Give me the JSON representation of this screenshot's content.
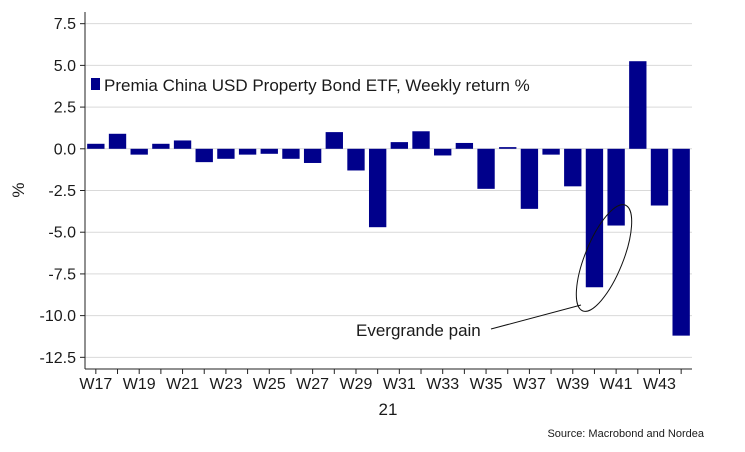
{
  "chart_data": {
    "type": "bar",
    "title": "",
    "ylabel": "%",
    "xlabel": "21",
    "ylim": [
      -13.2,
      8.2
    ],
    "yticks": [
      7.5,
      5.0,
      2.5,
      0.0,
      -2.5,
      -5.0,
      -7.5,
      -10.0,
      -12.5
    ],
    "ytick_labels": [
      "7.5",
      "5.0",
      "2.5",
      "0.0",
      "-2.5",
      "-5.0",
      "-7.5",
      "-10.0",
      "-12.5"
    ],
    "xtick_labels": [
      "W17",
      "W19",
      "W21",
      "W23",
      "W25",
      "W27",
      "W29",
      "W31",
      "W33",
      "W35",
      "W37",
      "W39",
      "W41",
      "W43"
    ],
    "categories": [
      "W17",
      "W18",
      "W19",
      "W20",
      "W21",
      "W22",
      "W23",
      "W24",
      "W25",
      "W26",
      "W27",
      "W28",
      "W29",
      "W30",
      "W31",
      "W32",
      "W33",
      "W34",
      "W35",
      "W36",
      "W37",
      "W38",
      "W39",
      "W40",
      "W41",
      "W42",
      "W43",
      "W44"
    ],
    "series": [
      {
        "name": "Premia China USD Property Bond ETF, Weekly return %",
        "color": "#00008b",
        "values": [
          0.3,
          0.9,
          -0.35,
          0.3,
          0.5,
          -0.8,
          -0.6,
          -0.35,
          -0.3,
          -0.6,
          -0.85,
          1.0,
          -1.3,
          -4.7,
          0.4,
          1.05,
          -0.4,
          0.35,
          -2.4,
          0.1,
          -3.6,
          -0.35,
          -2.25,
          -8.3,
          -4.6,
          5.25,
          -3.4,
          -11.2
        ]
      }
    ],
    "annotation": "Evergrande pain",
    "source": "Source: Macrobond and Nordea",
    "gridlines": true
  }
}
